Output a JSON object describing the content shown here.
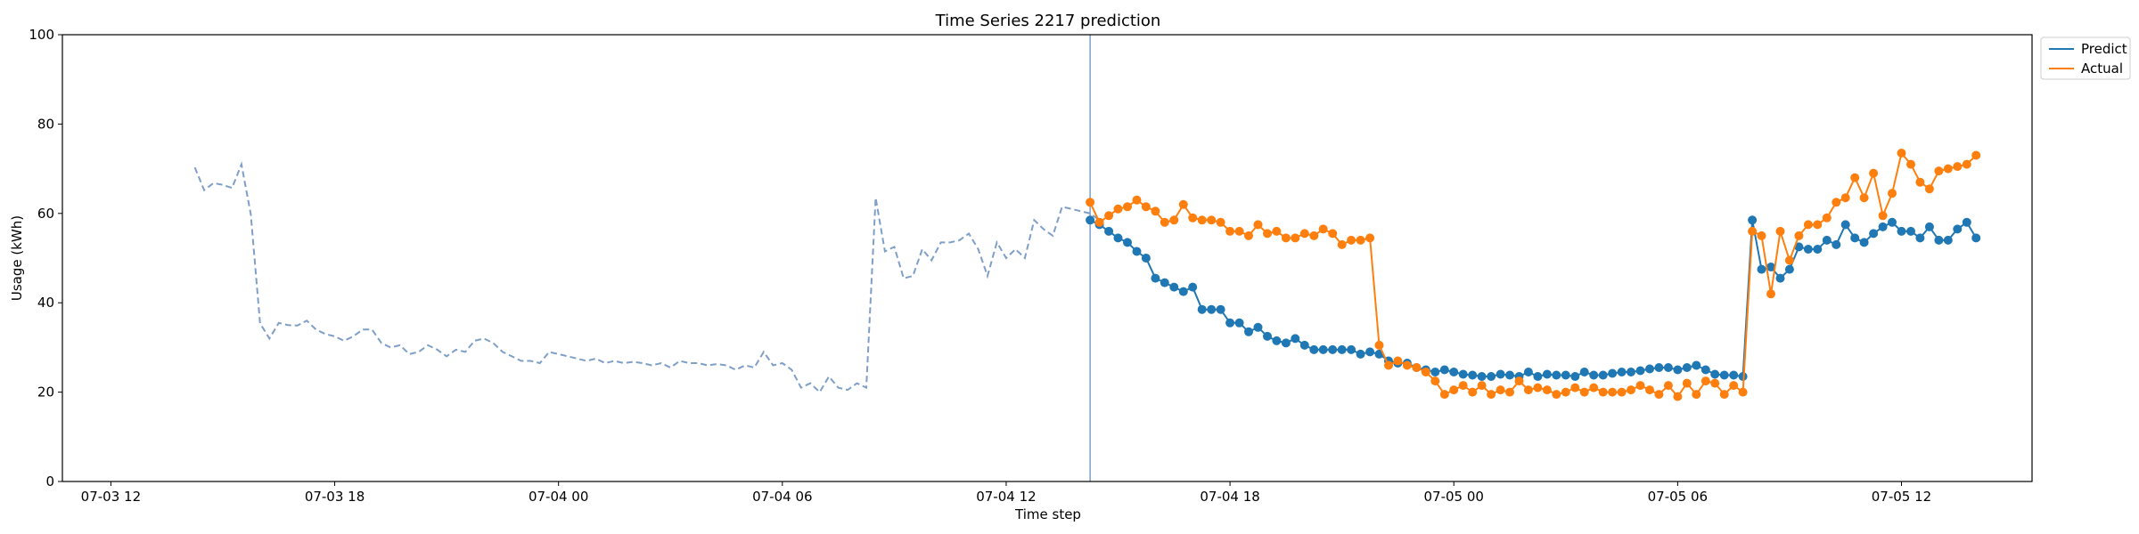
{
  "chart_data": {
    "type": "line",
    "title": "Time Series 2217 prediction",
    "xlabel": "Time step",
    "ylabel": "Usage (kWh)",
    "ylim": [
      0,
      100
    ],
    "yticks": [
      0,
      20,
      40,
      60,
      80,
      100
    ],
    "xlim": [
      -1.3,
      51.5
    ],
    "xticks": [
      {
        "t": 0,
        "label": "07-03 12"
      },
      {
        "t": 6,
        "label": "07-03 18"
      },
      {
        "t": 12,
        "label": "07-04 00"
      },
      {
        "t": 18,
        "label": "07-04 06"
      },
      {
        "t": 24,
        "label": "07-04 12"
      },
      {
        "t": 30,
        "label": "07-04 18"
      },
      {
        "t": 36,
        "label": "07-05 00"
      },
      {
        "t": 42,
        "label": "07-05 06"
      },
      {
        "t": 48,
        "label": "07-05 12"
      }
    ],
    "forecast_start": 26.25,
    "legend": {
      "placement": "upper-right-outside",
      "entries": [
        "Predict",
        "Actual"
      ]
    },
    "colors": {
      "history": "#7f9fc8",
      "predict": "#1f77b4",
      "actual": "#ff7f0e",
      "divider": "#7f9fc8"
    },
    "history": {
      "start": 2.25,
      "step": 0.25,
      "values": [
        70.3,
        65.2,
        66.8,
        66.4,
        65.7,
        71.0,
        59.8,
        35.4,
        32.0,
        35.5,
        35.0,
        34.9,
        36.0,
        34.0,
        33.0,
        32.5,
        31.5,
        32.5,
        34.0,
        34.0,
        31.0,
        30.0,
        30.5,
        28.5,
        29.0,
        30.5,
        29.5,
        28.0,
        29.5,
        29.0,
        31.5,
        32.0,
        31.0,
        29.0,
        28.0,
        27.0,
        27.0,
        26.5,
        29.0,
        28.5,
        28.0,
        27.5,
        27.0,
        27.5,
        26.5,
        27.0,
        26.5,
        26.8,
        26.5,
        26.0,
        26.5,
        25.5,
        27.0,
        26.5,
        26.5,
        26.0,
        26.3,
        26.0,
        25.0,
        26.0,
        25.5,
        29.0,
        26.0,
        26.5,
        25.0,
        21.0,
        22.0,
        20.0,
        23.5,
        21.0,
        20.5,
        22.0,
        21.0,
        63.5,
        51.5,
        52.5,
        45.5,
        46.0,
        52.0,
        49.5,
        53.5,
        53.5,
        54.0,
        55.5,
        52.0,
        46.0,
        53.5,
        50.0,
        52.0,
        50.0,
        58.5,
        56.5,
        55.0,
        61.5,
        61.0,
        60.5,
        60.0,
        58.5
      ]
    },
    "series": [
      {
        "name": "Predict",
        "start": 26.25,
        "step": 0.25,
        "values": [
          58.5,
          57.5,
          56.0,
          54.5,
          53.5,
          51.5,
          50.0,
          45.5,
          44.5,
          43.5,
          42.5,
          43.5,
          38.5,
          38.5,
          38.5,
          35.5,
          35.5,
          33.5,
          34.5,
          32.5,
          31.5,
          31.0,
          32.0,
          30.5,
          29.5,
          29.5,
          29.5,
          29.5,
          29.5,
          28.5,
          29.0,
          28.5,
          27.0,
          26.5,
          26.5,
          25.5,
          25.0,
          24.5,
          25.0,
          24.5,
          24.0,
          23.8,
          23.5,
          23.5,
          24.0,
          23.8,
          23.5,
          24.5,
          23.5,
          24.0,
          23.8,
          23.8,
          23.5,
          24.5,
          23.8,
          23.8,
          24.2,
          24.5,
          24.5,
          24.8,
          25.2,
          25.5,
          25.5,
          25.0,
          25.5,
          26.0,
          25.0,
          24.0,
          23.8,
          23.8,
          23.5,
          58.5,
          47.5,
          48.0,
          45.5,
          47.5,
          52.5,
          52.0,
          52.0,
          54.0,
          53.0,
          57.5,
          54.5,
          53.5,
          55.5,
          57.0,
          58.0,
          56.0,
          56.0,
          54.5,
          57.0,
          54.0,
          54.0,
          56.5,
          58.0,
          54.5
        ]
      },
      {
        "name": "Actual",
        "start": 26.25,
        "step": 0.25,
        "values": [
          62.5,
          58.0,
          59.5,
          61.0,
          61.5,
          63.0,
          61.5,
          60.5,
          58.0,
          58.5,
          62.0,
          59.0,
          58.5,
          58.5,
          58.0,
          56.0,
          56.0,
          55.0,
          57.5,
          55.5,
          56.0,
          54.5,
          54.5,
          55.5,
          55.0,
          56.5,
          55.5,
          53.0,
          54.0,
          54.0,
          54.5,
          30.5,
          26.0,
          27.0,
          26.0,
          25.5,
          24.5,
          22.5,
          19.5,
          20.5,
          21.5,
          20.0,
          21.5,
          19.5,
          20.5,
          20.0,
          22.5,
          20.5,
          21.0,
          20.5,
          19.5,
          20.0,
          21.0,
          20.0,
          21.0,
          20.0,
          20.0,
          20.0,
          20.5,
          21.5,
          20.5,
          19.5,
          21.5,
          19.0,
          22.0,
          19.5,
          22.5,
          22.0,
          19.5,
          21.5,
          20.0,
          56.0,
          55.0,
          42.0,
          56.0,
          49.5,
          55.0,
          57.5,
          57.5,
          59.0,
          62.5,
          63.5,
          68.0,
          63.5,
          69.0,
          59.5,
          64.5,
          73.5,
          71.0,
          67.0,
          65.5,
          69.5,
          70.0,
          70.5,
          71.0,
          73.0
        ]
      }
    ]
  }
}
